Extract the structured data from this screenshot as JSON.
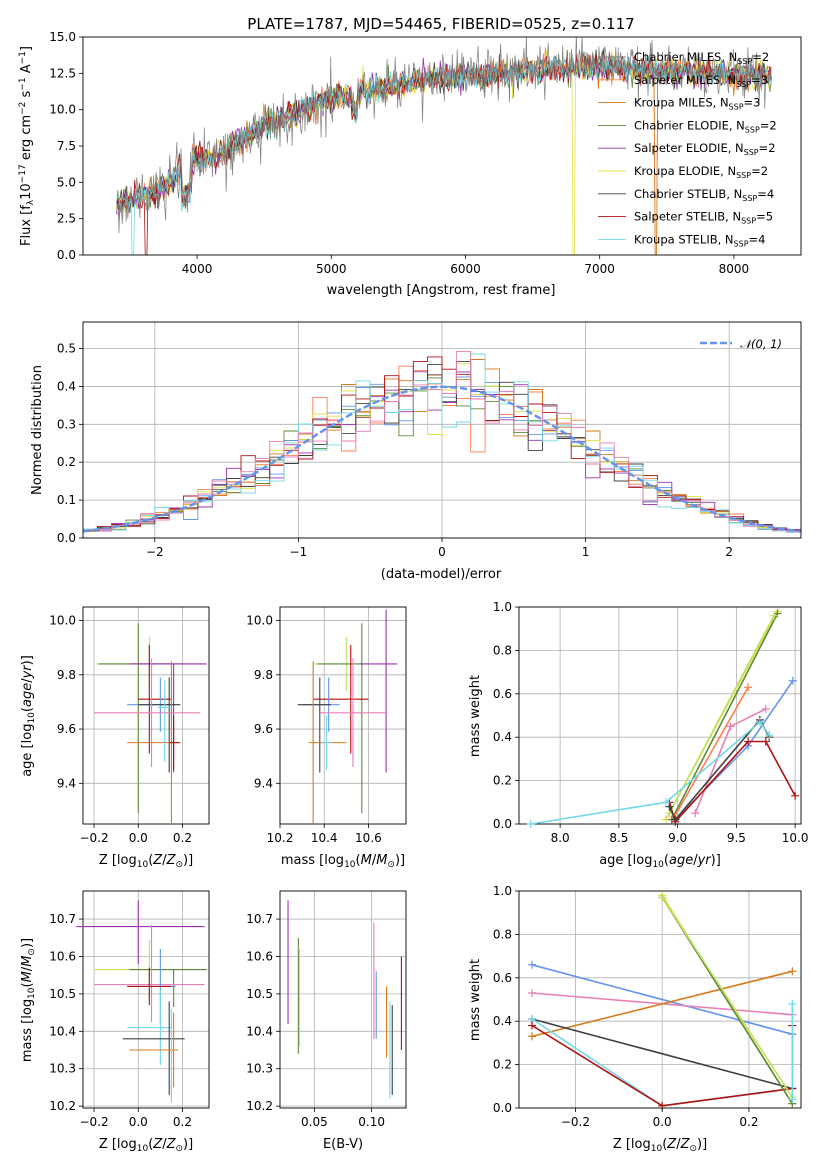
{
  "colors": [
    "#808080",
    "#ff7f50",
    "#d97a1b",
    "#5c8a3a",
    "#9b30b0",
    "#e0e040",
    "#404040",
    "#b01010",
    "#70d8e8",
    "#6495ed",
    "#e87fb5",
    "#c0e060"
  ],
  "series_names": [
    "Chabrier MILES, N$_{SSP}$=2",
    "Salpeter MILES, N$_{SSP}$=3",
    "Kroupa MILES, N$_{SSP}$=3",
    "Chabrier ELODIE, N$_{SSP}$=2",
    "Salpeter ELODIE, N$_{SSP}$=2",
    "Kroupa ELODIE, N$_{SSP}$=2",
    "Chabrier STELIB, N$_{SSP}$=4",
    "Salpeter STELIB, N$_{SSP}$=5",
    "Kroupa STELIB, N$_{SSP}$=4"
  ],
  "legend_display": [
    {
      "pre": "Chabrier MILES, N",
      "sub": "SSP",
      "post": "=2"
    },
    {
      "pre": "Salpeter MILES, N",
      "sub": "SSP",
      "post": "=3"
    },
    {
      "pre": "Kroupa MILES, N",
      "sub": "SSP",
      "post": "=3"
    },
    {
      "pre": "Chabrier ELODIE, N",
      "sub": "SSP",
      "post": "=2"
    },
    {
      "pre": "Salpeter ELODIE, N",
      "sub": "SSP",
      "post": "=2"
    },
    {
      "pre": "Kroupa ELODIE, N",
      "sub": "SSP",
      "post": "=2"
    },
    {
      "pre": "Chabrier STELIB, N",
      "sub": "SSP",
      "post": "=4"
    },
    {
      "pre": "Salpeter STELIB, N",
      "sub": "SSP",
      "post": "=5"
    },
    {
      "pre": "Kroupa STELIB, N",
      "sub": "SSP",
      "post": "=4"
    }
  ],
  "chart_data": [
    {
      "id": "spectrum",
      "type": "line",
      "title": "PLATE=1787, MJD=54465, FIBERID=0525, z=0.117",
      "xlabel": "wavelength [Angstrom, rest frame]",
      "ylabel": "Flux [fλ10⁻¹⁷ erg cm⁻² s⁻¹ A⁻¹]",
      "xlim": [
        3150,
        8500
      ],
      "ylim": [
        0,
        15
      ],
      "xticks": [
        4000,
        5000,
        6000,
        7000,
        8000
      ],
      "yticks": [
        0.0,
        2.5,
        5.0,
        7.5,
        10.0,
        12.5,
        15.0
      ],
      "legend": "top-right",
      "continuum": {
        "x": [
          3400,
          3600,
          3800,
          3950,
          4100,
          4300,
          4500,
          4700,
          4900,
          5100,
          5300,
          5500,
          5800,
          6100,
          6400,
          6700,
          7000,
          7300,
          7600,
          8000,
          8300
        ],
        "y": [
          3.6,
          4.0,
          5.0,
          6.8,
          6.6,
          7.7,
          9.0,
          9.6,
          10.5,
          11.0,
          11.3,
          11.6,
          12.2,
          12.4,
          12.6,
          12.9,
          13.0,
          12.8,
          12.6,
          12.4,
          12.3
        ]
      }
    },
    {
      "id": "residuals",
      "type": "histogram",
      "xlabel": "(data-model)/error",
      "ylabel": "Normed distribution",
      "xlim": [
        -2.5,
        2.5
      ],
      "ylim": [
        0,
        0.57
      ],
      "xticks": [
        -2,
        -1,
        0,
        1,
        2
      ],
      "yticks": [
        0.0,
        0.1,
        0.2,
        0.3,
        0.4,
        0.5
      ],
      "legend": "top-right",
      "reference": {
        "name": "𝒩(0, 1)",
        "mean": 0,
        "sigma": 1,
        "style": "dashed"
      }
    },
    {
      "id": "age_vs_Z",
      "type": "errorbar",
      "xlabel": "Z [log10(Z/Z⊙)]",
      "ylabel": "age [log10(age/yr)]",
      "xlim": [
        -0.25,
        0.32
      ],
      "ylim": [
        9.25,
        10.05
      ],
      "xticks": [
        -0.2,
        0.0,
        0.2
      ],
      "yticks": [
        9.4,
        9.6,
        9.8,
        10.0
      ],
      "points": [
        {
          "x": 0.05,
          "y": 9.84,
          "xerr": [
            0.24,
            0.25
          ],
          "yerr": [
            0.1,
            0.1
          ],
          "c": 11
        },
        {
          "x": 0.0,
          "y": 9.84,
          "xerr": [
            0.18,
            0.2
          ],
          "yerr": [
            0.55,
            0.15
          ],
          "c": 3
        },
        {
          "x": 0.16,
          "y": 9.84,
          "xerr": [
            0.2,
            0.15
          ],
          "yerr": [
            0.4,
            0.0
          ],
          "c": 4
        },
        {
          "x": 0.05,
          "y": 9.71,
          "xerr": [
            0.05,
            0.1
          ],
          "yerr": [
            0.2,
            0.2
          ],
          "c": 7
        },
        {
          "x": 0.1,
          "y": 9.69,
          "xerr": [
            0.15,
            0.07
          ],
          "yerr": [
            0.1,
            0.1
          ],
          "c": 9
        },
        {
          "x": 0.14,
          "y": 9.69,
          "xerr": [
            0.14,
            0.05
          ],
          "yerr": [
            0.25,
            0.1
          ],
          "c": 6
        },
        {
          "x": 0.06,
          "y": 9.66,
          "xerr": [
            0.26,
            0.22
          ],
          "yerr": [
            0.2,
            0.2
          ],
          "c": 10
        },
        {
          "x": 0.15,
          "y": 9.55,
          "xerr": [
            0.2,
            0.02
          ],
          "yerr": [
            0.3,
            0.3
          ],
          "c": 2
        },
        {
          "x": 0.16,
          "y": 9.55,
          "xerr": [
            0.02,
            0.03
          ],
          "yerr": [
            0.1,
            0.1
          ],
          "c": 7
        },
        {
          "x": 0.12,
          "y": 9.68,
          "xerr": [
            0.03,
            0.03
          ],
          "yerr": [
            0.2,
            0.1
          ],
          "c": 8
        }
      ]
    },
    {
      "id": "age_vs_mass",
      "type": "errorbar",
      "xlabel": "mass [log10(M/M⊙)]",
      "ylabel": "",
      "xlim": [
        10.2,
        10.77
      ],
      "ylim": [
        9.25,
        10.05
      ],
      "xticks": [
        10.2,
        10.4,
        10.6
      ],
      "yticks": [
        9.4,
        9.6,
        9.8,
        10.0
      ],
      "points": [
        {
          "x": 10.5,
          "y": 9.84,
          "xerr": [
            0.15,
            0.1
          ],
          "yerr": [
            0.1,
            0.1
          ],
          "c": 11
        },
        {
          "x": 10.57,
          "y": 9.84,
          "xerr": [
            0.2,
            0.0
          ],
          "yerr": [
            0.55,
            0.15
          ],
          "c": 3
        },
        {
          "x": 10.68,
          "y": 9.84,
          "xerr": [
            0.12,
            0.05
          ],
          "yerr": [
            0.4,
            0.2
          ],
          "c": 4
        },
        {
          "x": 10.52,
          "y": 9.71,
          "xerr": [
            0.17,
            0.08
          ],
          "yerr": [
            0.2,
            0.2
          ],
          "c": 7
        },
        {
          "x": 10.42,
          "y": 9.69,
          "xerr": [
            0.12,
            0.05
          ],
          "yerr": [
            0.1,
            0.1
          ],
          "c": 9
        },
        {
          "x": 10.38,
          "y": 9.69,
          "xerr": [
            0.1,
            0.05
          ],
          "yerr": [
            0.25,
            0.1
          ],
          "c": 6
        },
        {
          "x": 10.53,
          "y": 9.66,
          "xerr": [
            0.15,
            0.15
          ],
          "yerr": [
            0.2,
            0.2
          ],
          "c": 10
        },
        {
          "x": 10.35,
          "y": 9.55,
          "xerr": [
            0.02,
            0.15
          ],
          "yerr": [
            0.3,
            0.3
          ],
          "c": 2
        },
        {
          "x": 10.41,
          "y": 9.55,
          "xerr": [
            0.02,
            0.02
          ],
          "yerr": [
            0.1,
            0.1
          ],
          "c": 8
        }
      ]
    },
    {
      "id": "mass_weight_vs_age",
      "type": "line",
      "xlabel": "age [log10(age/yr)]",
      "ylabel": "mass weight",
      "xlim": [
        7.65,
        10.05
      ],
      "ylim": [
        0,
        1
      ],
      "xticks": [
        8.0,
        8.5,
        9.0,
        9.5,
        10.0
      ],
      "yticks": [
        0.0,
        0.2,
        0.4,
        0.6,
        0.8,
        1.0
      ],
      "series": [
        {
          "c": 5,
          "x": [
            8.9,
            9.85
          ],
          "y": [
            0.02,
            0.98
          ]
        },
        {
          "c": 3,
          "x": [
            8.95,
            9.85
          ],
          "y": [
            0.02,
            0.97
          ]
        },
        {
          "c": 11,
          "x": [
            8.93,
            9.82
          ],
          "y": [
            0.05,
            0.96
          ]
        },
        {
          "c": 9,
          "x": [
            8.98,
            9.6,
            9.98
          ],
          "y": [
            0.02,
            0.36,
            0.66
          ]
        },
        {
          "c": 1,
          "x": [
            8.97,
            9.6
          ],
          "y": [
            0.03,
            0.63
          ]
        },
        {
          "c": 10,
          "x": [
            9.15,
            9.45,
            9.75
          ],
          "y": [
            0.05,
            0.45,
            0.53
          ]
        },
        {
          "c": 7,
          "x": [
            8.93,
            8.98,
            9.6,
            9.75,
            10.0
          ],
          "y": [
            0.1,
            0.01,
            0.38,
            0.38,
            0.13
          ]
        },
        {
          "c": 6,
          "x": [
            8.93,
            8.98,
            9.7,
            9.78
          ],
          "y": [
            0.08,
            0.02,
            0.48,
            0.4
          ]
        },
        {
          "c": 8,
          "x": [
            7.75,
            8.9,
            9.7,
            9.78
          ],
          "y": [
            0.0,
            0.1,
            0.47,
            0.41
          ]
        }
      ]
    },
    {
      "id": "mass_vs_Z",
      "type": "errorbar",
      "xlabel": "Z [log10(Z/Z⊙)]",
      "ylabel": "mass [log10(M/M⊙)]",
      "xlim": [
        -0.25,
        0.32
      ],
      "ylim": [
        10.195,
        10.775
      ],
      "xticks": [
        -0.2,
        0.0,
        0.2
      ],
      "yticks": [
        10.2,
        10.3,
        10.4,
        10.5,
        10.6,
        10.7
      ],
      "points": [
        {
          "x": 0.0,
          "y": 10.68,
          "xerr": [
            0.28,
            0.3
          ],
          "yerr": [
            0.1,
            0.07
          ],
          "c": 4
        },
        {
          "x": 0.05,
          "y": 10.565,
          "xerr": [
            0.25,
            0.25
          ],
          "yerr": [
            0.08,
            0.08
          ],
          "c": 11
        },
        {
          "x": 0.16,
          "y": 10.565,
          "xerr": [
            0.2,
            0.15
          ],
          "yerr": [
            0.1,
            0.0
          ],
          "c": 3
        },
        {
          "x": 0.06,
          "y": 10.525,
          "xerr": [
            0.26,
            0.24
          ],
          "yerr": [
            0.1,
            0.16
          ],
          "c": 10
        },
        {
          "x": 0.1,
          "y": 10.52,
          "xerr": [
            0.15,
            0.07
          ],
          "yerr": [
            0.1,
            0.1
          ],
          "c": 9
        },
        {
          "x": 0.05,
          "y": 10.52,
          "xerr": [
            0.1,
            0.1
          ],
          "yerr": [
            0.05,
            0.05
          ],
          "c": 7
        },
        {
          "x": 0.1,
          "y": 10.41,
          "xerr": [
            0.15,
            0.05
          ],
          "yerr": [
            0.1,
            0.1
          ],
          "c": 8
        },
        {
          "x": 0.14,
          "y": 10.38,
          "xerr": [
            0.21,
            0.07
          ],
          "yerr": [
            0.15,
            0.1
          ],
          "c": 6
        },
        {
          "x": 0.16,
          "y": 10.35,
          "xerr": [
            0.2,
            0.02
          ],
          "yerr": [
            0.1,
            0.1
          ],
          "c": 2
        },
        {
          "x": 0.15,
          "y": 10.41,
          "xerr": [
            0.0,
            0.0
          ],
          "yerr": [
            0.2,
            0.05
          ],
          "c": 8
        }
      ]
    },
    {
      "id": "mass_vs_ebv",
      "type": "errorbar",
      "xlabel": "E(B-V)",
      "ylabel": "",
      "xlim": [
        0.02,
        0.13
      ],
      "ylim": [
        10.195,
        10.775
      ],
      "xticks": [
        0.05,
        0.1
      ],
      "yticks": [
        10.2,
        10.3,
        10.4,
        10.5,
        10.6,
        10.7
      ],
      "points": [
        {
          "x": 0.027,
          "y": 10.58,
          "xerr": [
            0,
            0
          ],
          "yerr": [
            0.16,
            0.17
          ],
          "c": 4
        },
        {
          "x": 0.036,
          "y": 10.5,
          "xerr": [
            0,
            0
          ],
          "yerr": [
            0.16,
            0.15
          ],
          "c": 3
        },
        {
          "x": 0.037,
          "y": 10.5,
          "xerr": [
            0,
            0
          ],
          "yerr": [
            0.14,
            0.12
          ],
          "c": 11
        },
        {
          "x": 0.102,
          "y": 10.53,
          "xerr": [
            0,
            0
          ],
          "yerr": [
            0.15,
            0.16
          ],
          "c": 10
        },
        {
          "x": 0.104,
          "y": 10.47,
          "xerr": [
            0,
            0
          ],
          "yerr": [
            0.09,
            0.09
          ],
          "c": 9
        },
        {
          "x": 0.113,
          "y": 10.42,
          "xerr": [
            0,
            0
          ],
          "yerr": [
            0.09,
            0.1
          ],
          "c": 2
        },
        {
          "x": 0.116,
          "y": 10.35,
          "xerr": [
            0,
            0
          ],
          "yerr": [
            0.13,
            0.13
          ],
          "c": 8
        },
        {
          "x": 0.118,
          "y": 10.35,
          "xerr": [
            0,
            0
          ],
          "yerr": [
            0.12,
            0.12
          ],
          "c": 6
        },
        {
          "x": 0.126,
          "y": 10.48,
          "xerr": [
            0,
            0
          ],
          "yerr": [
            0.13,
            0.12
          ],
          "c": 7
        }
      ]
    },
    {
      "id": "mass_weight_vs_Z",
      "type": "line",
      "xlabel": "Z [log10(Z/Z⊙)]",
      "ylabel": "mass weight",
      "xlim": [
        -0.33,
        0.32
      ],
      "ylim": [
        0,
        1
      ],
      "xticks": [
        -0.2,
        0.0,
        0.2
      ],
      "yticks": [
        0.0,
        0.2,
        0.4,
        0.6,
        0.8,
        1.0
      ],
      "series": [
        {
          "c": 9,
          "x": [
            -0.3,
            0.3
          ],
          "y": [
            0.66,
            0.34
          ]
        },
        {
          "c": 10,
          "x": [
            -0.3,
            0.3
          ],
          "y": [
            0.53,
            0.43
          ]
        },
        {
          "c": 2,
          "x": [
            -0.3,
            0.3
          ],
          "y": [
            0.33,
            0.63
          ]
        },
        {
          "c": 6,
          "x": [
            -0.3,
            0.3
          ],
          "y": [
            0.41,
            0.09
          ]
        },
        {
          "c": 8,
          "x": [
            -0.3,
            0.0,
            0.3
          ],
          "y": [
            0.41,
            0.01,
            0.09
          ]
        },
        {
          "c": 7,
          "x": [
            -0.3,
            0.0,
            0.3,
            0.3
          ],
          "y": [
            0.38,
            0.01,
            0.09,
            0.38
          ]
        },
        {
          "c": 5,
          "x": [
            0.0,
            0.3
          ],
          "y": [
            0.98,
            0.02
          ]
        },
        {
          "c": 3,
          "x": [
            0.0,
            0.3
          ],
          "y": [
            0.97,
            0.02
          ]
        },
        {
          "c": 11,
          "x": [
            0.0,
            0.3
          ],
          "y": [
            0.97,
            0.05
          ]
        },
        {
          "c": 8,
          "x": [
            0.3,
            0.3
          ],
          "y": [
            0.48,
            0.04
          ]
        }
      ]
    }
  ]
}
